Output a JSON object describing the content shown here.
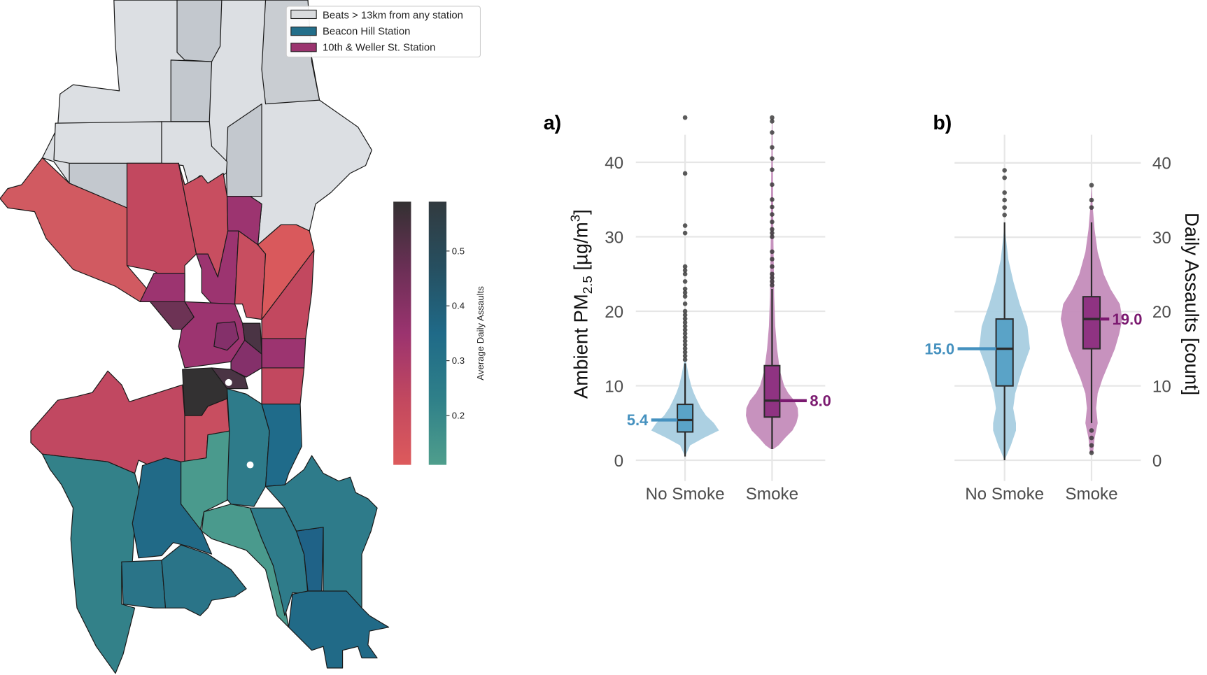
{
  "map": {
    "legend": [
      {
        "label": "Beats > 13km from any station",
        "color": "#d9dbde"
      },
      {
        "label": "Beacon Hill Station",
        "color": "#236e8a"
      },
      {
        "label": "10th & Weller St. Station",
        "color": "#9b346f"
      }
    ],
    "colorbar": {
      "label": "Average Daily Assaults",
      "ticks": [
        "0.5",
        "0.4",
        "0.3",
        "0.2"
      ],
      "range": [
        0.11,
        0.59
      ],
      "red_gradient": [
        "#333132",
        "#6a2f55",
        "#9b336f",
        "#c2485f",
        "#dd5a5c"
      ],
      "teal_gradient": [
        "#323a3f",
        "#264f60",
        "#1f6a88",
        "#2f8089",
        "#4f9e8c"
      ]
    }
  },
  "chart_data": [
    {
      "type": "violin",
      "panel_label": "a)",
      "ylabel_main": "Ambient PM",
      "ylabel_sub": "2.5",
      "ylabel_unit": " [µg/m",
      "ylabel_sup": "3",
      "ylabel_end": "]",
      "ylim": [
        0,
        46
      ],
      "yticks": [
        "0",
        "10",
        "20",
        "30",
        "40"
      ],
      "ytick_values": [
        0,
        10,
        20,
        30,
        40
      ],
      "grid": true,
      "axis_side": "left",
      "categories": [
        "No Smoke",
        "Smoke"
      ],
      "series": [
        {
          "category": "No Smoke",
          "color": "#a8cde0",
          "box_color": "#5aa3c7",
          "label_color": "#4591bf",
          "median": 5.4,
          "median_label": "5.4",
          "q1": 3.8,
          "q3": 7.5,
          "whisker_low": 0.5,
          "whisker_high": 13,
          "outliers": [
            13.5,
            14,
            14.5,
            15,
            15.5,
            16,
            16.5,
            17,
            17.5,
            18,
            18.5,
            19,
            19.5,
            20,
            21,
            22,
            22.5,
            23,
            24,
            25,
            25.5,
            26,
            30.5,
            31.5,
            38.5,
            46
          ],
          "density": [
            [
              0.5,
              0
            ],
            [
              2,
              0.15
            ],
            [
              3,
              0.55
            ],
            [
              4,
              1
            ],
            [
              5,
              0.85
            ],
            [
              6,
              0.62
            ],
            [
              7,
              0.47
            ],
            [
              8,
              0.36
            ],
            [
              9,
              0.26
            ],
            [
              10,
              0.18
            ],
            [
              11.5,
              0.1
            ],
            [
              13,
              0.04
            ],
            [
              13.5,
              0
            ]
          ]
        },
        {
          "category": "Smoke",
          "color": "#c48cba",
          "box_color": "#8f3382",
          "label_color": "#7b1a70",
          "median": 8.0,
          "median_label": "8.0",
          "q1": 5.8,
          "q3": 12.7,
          "whisker_low": 1.5,
          "whisker_high": 23,
          "outliers": [
            23.5,
            24,
            24.5,
            25,
            26,
            27,
            28,
            30,
            30.5,
            31,
            32,
            33,
            34,
            35,
            37,
            39,
            40.5,
            42,
            44,
            45.5,
            46
          ],
          "density": [
            [
              1.5,
              0.05
            ],
            [
              2,
              0.25
            ],
            [
              3,
              0.5
            ],
            [
              4,
              0.78
            ],
            [
              5,
              0.93
            ],
            [
              6,
              1
            ],
            [
              7,
              0.98
            ],
            [
              8,
              0.85
            ],
            [
              9,
              0.62
            ],
            [
              10,
              0.46
            ],
            [
              12,
              0.3
            ],
            [
              15,
              0.19
            ],
            [
              18,
              0.12
            ],
            [
              22,
              0.08
            ],
            [
              30,
              0.05
            ],
            [
              40,
              0.03
            ],
            [
              46,
              0.01
            ]
          ]
        }
      ]
    },
    {
      "type": "violin",
      "panel_label": "b)",
      "ylabel": "Daily Assaults [count]",
      "ylim": [
        0,
        40
      ],
      "yticks": [
        "0",
        "10",
        "20",
        "30",
        "40"
      ],
      "ytick_values": [
        0,
        10,
        20,
        30,
        40
      ],
      "grid": true,
      "axis_side": "right",
      "categories": [
        "No Smoke",
        "Smoke"
      ],
      "series": [
        {
          "category": "No Smoke",
          "color": "#a8cde0",
          "box_color": "#5aa3c7",
          "label_color": "#4591bf",
          "median": 15.0,
          "median_label": "15.0",
          "q1": 10,
          "q3": 19,
          "whisker_low": 0,
          "whisker_high": 32,
          "outliers": [
            33,
            34,
            35,
            36,
            38,
            39
          ],
          "density": [
            [
              0,
              0
            ],
            [
              2,
              0.25
            ],
            [
              4,
              0.45
            ],
            [
              5,
              0.45
            ],
            [
              7,
              0.34
            ],
            [
              9,
              0.42
            ],
            [
              12,
              0.68
            ],
            [
              15,
              1
            ],
            [
              18,
              0.9
            ],
            [
              21,
              0.6
            ],
            [
              24,
              0.35
            ],
            [
              27,
              0.15
            ],
            [
              30,
              0.05
            ],
            [
              32,
              0
            ]
          ]
        },
        {
          "category": "Smoke",
          "color": "#c48cba",
          "box_color": "#8f3382",
          "label_color": "#7b1a70",
          "median": 19.0,
          "median_label": "19.0",
          "q1": 15,
          "q3": 22,
          "whisker_low": 5,
          "whisker_high": 32,
          "outliers": [
            1,
            2,
            3,
            4,
            34,
            35,
            37
          ],
          "density": [
            [
              1,
              0.05
            ],
            [
              3,
              0.1
            ],
            [
              5,
              0.2
            ],
            [
              7,
              0.15
            ],
            [
              9,
              0.2
            ],
            [
              11,
              0.36
            ],
            [
              13,
              0.56
            ],
            [
              15,
              0.76
            ],
            [
              17,
              0.9
            ],
            [
              19,
              1
            ],
            [
              21,
              0.92
            ],
            [
              23,
              0.62
            ],
            [
              25,
              0.4
            ],
            [
              28,
              0.2
            ],
            [
              31,
              0.1
            ],
            [
              34,
              0.04
            ],
            [
              37,
              0
            ]
          ]
        }
      ]
    }
  ]
}
